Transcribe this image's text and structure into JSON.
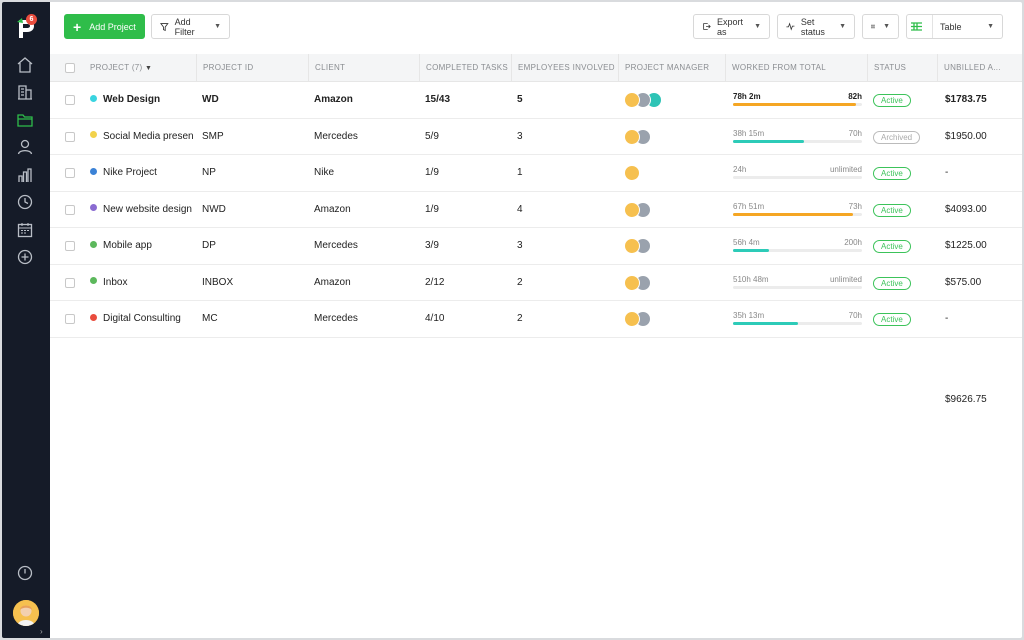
{
  "sidebar": {
    "badge_count": "6",
    "items": [
      {
        "name": "home-icon",
        "active": false
      },
      {
        "name": "building-icon",
        "active": false
      },
      {
        "name": "folder-icon",
        "active": true
      },
      {
        "name": "user-icon",
        "active": false
      },
      {
        "name": "chart-icon",
        "active": false
      },
      {
        "name": "clock-icon",
        "active": false
      },
      {
        "name": "calendar-icon",
        "active": false
      },
      {
        "name": "add-circle-icon",
        "active": false
      }
    ]
  },
  "toolbar": {
    "add_project": "Add Project",
    "add_filter": "Add Filter",
    "export_as": "Export as",
    "set_status": "Set status",
    "view": "Table"
  },
  "table": {
    "headers": [
      "PROJECT (7)",
      "PROJECT ID",
      "CLIENT",
      "COMPLETED TASKS",
      "EMPLOYEES INVOLVED",
      "PROJECT MANAGER",
      "WORKED FROM TOTAL",
      "STATUS",
      "UNBILLED A..."
    ],
    "rows": [
      {
        "name": "Web Design",
        "dot": "#3ad4e0",
        "id": "WD",
        "client": "Amazon",
        "tasks": "15/43",
        "employees": "5",
        "managers": 3,
        "worked": "78h 2m",
        "total": "82h",
        "progress": 0.95,
        "bar": "#f5a623",
        "status": "Active",
        "unbilled": "$1783.75",
        "bold": true
      },
      {
        "name": "Social Media presence",
        "dot": "#f2d24b",
        "id": "SMP",
        "client": "Mercedes",
        "tasks": "5/9",
        "employees": "3",
        "managers": 2,
        "worked": "38h 15m",
        "total": "70h",
        "progress": 0.55,
        "bar": "#2dcbb8",
        "status": "Archived",
        "unbilled": "$1950.00",
        "bold": false
      },
      {
        "name": "Nike Project",
        "dot": "#3b82d6",
        "id": "NP",
        "client": "Nike",
        "tasks": "1/9",
        "employees": "1",
        "managers": 1,
        "worked": "24h",
        "total": "unlimited",
        "progress": 0,
        "bar": "#2dcbb8",
        "status": "Active",
        "unbilled": "-",
        "bold": false
      },
      {
        "name": "New website design",
        "dot": "#8a6bd1",
        "id": "NWD",
        "client": "Amazon",
        "tasks": "1/9",
        "employees": "4",
        "managers": 2,
        "worked": "67h 51m",
        "total": "73h",
        "progress": 0.93,
        "bar": "#f5a623",
        "status": "Active",
        "unbilled": "$4093.00",
        "bold": false
      },
      {
        "name": "Mobile app",
        "dot": "#5cb85c",
        "id": "DP",
        "client": "Mercedes",
        "tasks": "3/9",
        "employees": "3",
        "managers": 2,
        "worked": "56h 4m",
        "total": "200h",
        "progress": 0.28,
        "bar": "#2dcbb8",
        "status": "Active",
        "unbilled": "$1225.00",
        "bold": false
      },
      {
        "name": "Inbox",
        "dot": "#5cb85c",
        "id": "INBOX",
        "client": "Amazon",
        "tasks": "2/12",
        "employees": "2",
        "managers": 2,
        "worked": "510h 48m",
        "total": "unlimited",
        "progress": 0,
        "bar": "#2dcbb8",
        "status": "Active",
        "unbilled": "$575.00",
        "bold": false
      },
      {
        "name": "Digital Consulting",
        "dot": "#e94c3d",
        "id": "MC",
        "client": "Mercedes",
        "tasks": "4/10",
        "employees": "2",
        "managers": 2,
        "worked": "35h 13m",
        "total": "70h",
        "progress": 0.5,
        "bar": "#2dcbb8",
        "status": "Active",
        "unbilled": "-",
        "bold": false
      }
    ],
    "total_unbilled": "$9626.75"
  },
  "colors": {
    "accent": "#2fbd4a",
    "sidebar": "#151b28"
  }
}
